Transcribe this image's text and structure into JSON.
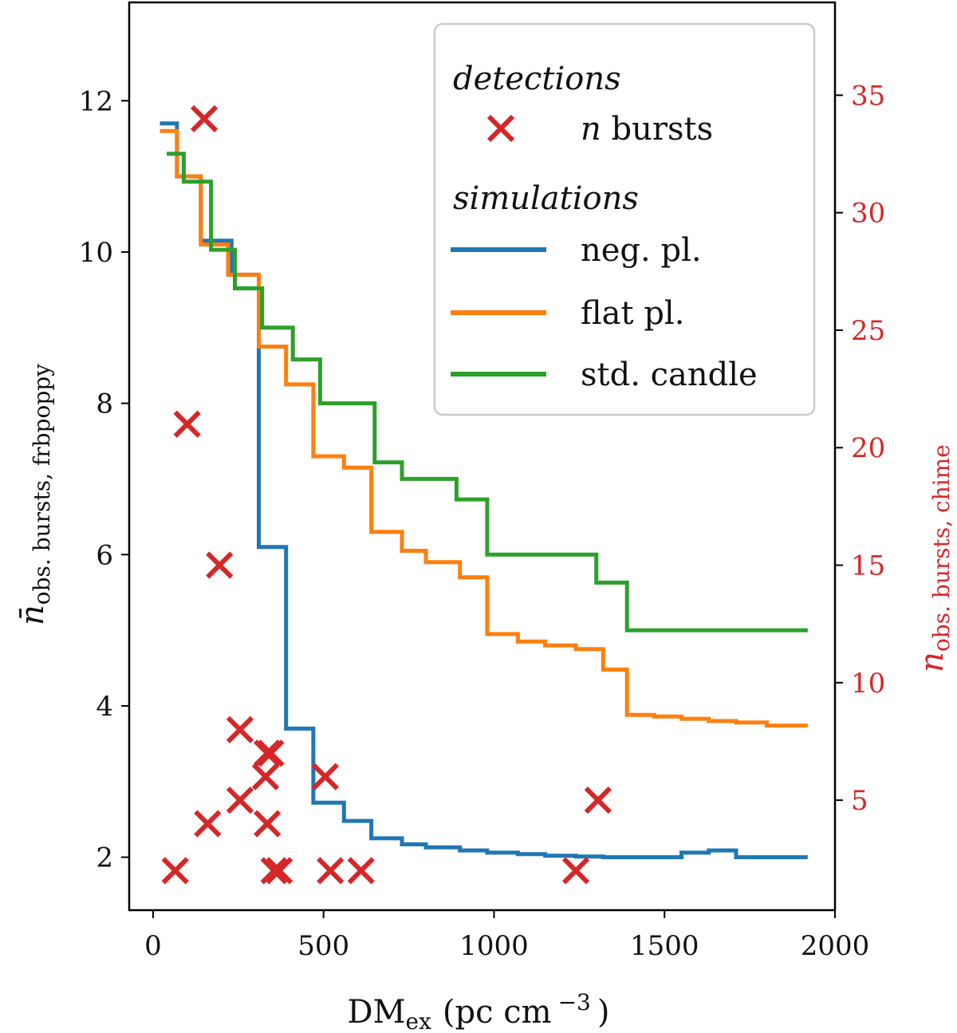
{
  "chart_data": {
    "type": "line",
    "xlabel": "DM",
    "xlabel_sub": "ex",
    "xlabel_unit": "(pc cm",
    "xlabel_unit_sup": "−3",
    "xlabel_unit_close": ")",
    "ylabel_left": "n̄",
    "ylabel_left_sub": "obs. bursts, frbpoppy",
    "ylabel_right": "n",
    "ylabel_right_sub": "obs. bursts, chime",
    "xlim": [
      -70,
      2000
    ],
    "ylim_left": [
      1.3,
      13.3
    ],
    "ylim_right": [
      0.32,
      38.95
    ],
    "xticks": [
      0,
      500,
      1000,
      1500,
      2000
    ],
    "xtick_labels": [
      "0",
      "500",
      "1000",
      "1500",
      "2000"
    ],
    "yticks_left": [
      2,
      4,
      6,
      8,
      10,
      12
    ],
    "ytick_labels_left": [
      "2",
      "4",
      "6",
      "8",
      "10",
      "12"
    ],
    "yticks_right": [
      5,
      10,
      15,
      20,
      25,
      30,
      35
    ],
    "ytick_labels_right": [
      "5",
      "10",
      "15",
      "20",
      "25",
      "30",
      "35"
    ],
    "colors": {
      "neg_pl": "#1f77b4",
      "flat_pl": "#ff7f0e",
      "std_candle": "#2ca02c",
      "detections": "#d62728",
      "right_axis": "#d62728"
    },
    "legend": {
      "position": "top-right",
      "detections_heading": "detections",
      "detections_label_italic": "n",
      "detections_label": " bursts",
      "simulations_heading": "simulations",
      "series_labels": [
        "neg. pl.",
        "flat pl.",
        "std. candle"
      ]
    },
    "series": [
      {
        "name": "neg. pl.",
        "color": "#1f77b4",
        "step_edges": [
          20,
          70,
          140,
          230,
          310,
          390,
          470,
          560,
          640,
          730,
          800,
          900,
          980,
          1070,
          1150,
          1240,
          1320,
          1390,
          1470,
          1550,
          1630,
          1710,
          1920
        ],
        "values": [
          11.7,
          11.0,
          10.15,
          9.7,
          6.1,
          3.7,
          2.72,
          2.48,
          2.25,
          2.17,
          2.13,
          2.09,
          2.06,
          2.04,
          2.02,
          2.01,
          2.0,
          2.0,
          2.0,
          2.06,
          2.09,
          2.0
        ]
      },
      {
        "name": "flat pl.",
        "color": "#ff7f0e",
        "step_edges": [
          20,
          70,
          140,
          220,
          310,
          390,
          470,
          560,
          640,
          730,
          800,
          900,
          980,
          1070,
          1150,
          1240,
          1320,
          1390,
          1470,
          1550,
          1630,
          1710,
          1800,
          1920
        ],
        "values": [
          11.6,
          11.0,
          10.1,
          9.7,
          8.75,
          8.25,
          7.3,
          7.15,
          6.3,
          6.05,
          5.9,
          5.7,
          4.95,
          4.85,
          4.8,
          4.75,
          4.48,
          3.88,
          3.86,
          3.83,
          3.8,
          3.78,
          3.74
        ]
      },
      {
        "name": "std. candle",
        "color": "#2ca02c",
        "step_edges": [
          40,
          90,
          170,
          240,
          320,
          410,
          490,
          650,
          730,
          890,
          980,
          1300,
          1390,
          1920
        ],
        "values": [
          11.3,
          10.93,
          10.03,
          9.52,
          9.0,
          8.58,
          8.0,
          7.22,
          7.0,
          6.73,
          6.0,
          5.63,
          5.0
        ]
      },
      {
        "name": "n bursts",
        "color": "#d62728",
        "axis": "right",
        "marker": "x",
        "x": [
          65,
          150,
          100,
          195,
          255,
          345,
          330,
          335,
          255,
          160,
          335,
          355,
          370,
          505,
          520,
          610,
          1240,
          1305
        ],
        "values": [
          2,
          34,
          21,
          15,
          8,
          7,
          6,
          7,
          5,
          4,
          4,
          2,
          2,
          6,
          2,
          2,
          2,
          5
        ]
      }
    ]
  }
}
